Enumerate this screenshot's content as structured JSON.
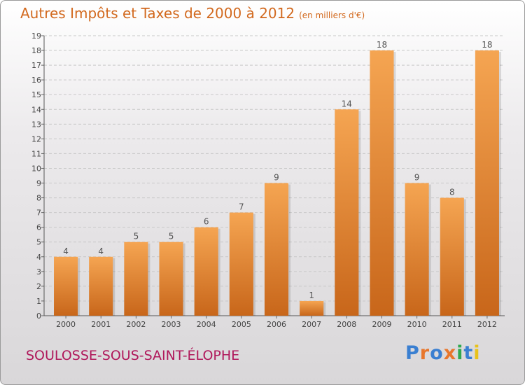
{
  "title": "Autres Impôts et Taxes de 2000 à 2012",
  "unit": "(en milliers d'€)",
  "commune": "SOULOSSE-SOUS-SAINT-ÉLOPHE",
  "logo": {
    "letters": [
      "P",
      "r",
      "o",
      "x",
      "i",
      "t",
      "i"
    ],
    "colors": [
      "#3a7fd1",
      "#e8762b",
      "#3a7fd1",
      "#e8762b",
      "#2fa84f",
      "#3a7fd1",
      "#e8c21a"
    ]
  },
  "colors": {
    "bar_top": "#f5a552",
    "bar_bottom": "#c8661a",
    "accent": "#d2691e"
  },
  "chart_data": {
    "type": "bar",
    "categories": [
      "2000",
      "2001",
      "2002",
      "2003",
      "2004",
      "2005",
      "2006",
      "2007",
      "2008",
      "2009",
      "2010",
      "2011",
      "2012"
    ],
    "values": [
      4,
      4,
      5,
      5,
      6,
      7,
      9,
      1,
      14,
      18,
      9,
      8,
      18
    ],
    "y_ticks": [
      "0",
      "1",
      "2",
      "3",
      "4",
      "5",
      "6",
      "7",
      "8",
      "9",
      "10",
      "11",
      "12",
      "13",
      "14",
      "15",
      "16",
      "17",
      "18",
      "19"
    ],
    "ylim": [
      0,
      19
    ],
    "grid": "horizontal",
    "legend": "none"
  }
}
